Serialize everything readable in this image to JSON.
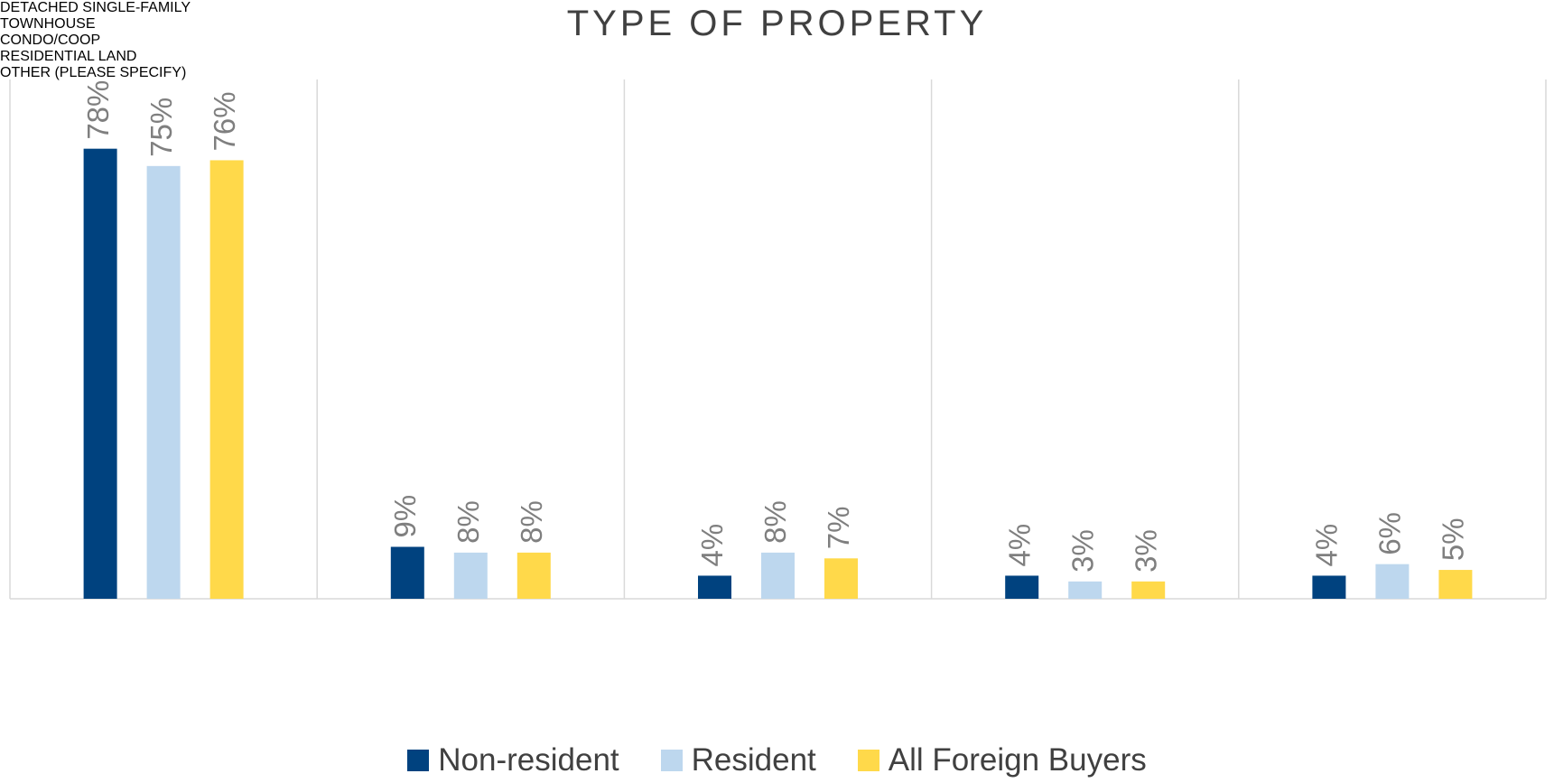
{
  "chart_data": {
    "type": "bar",
    "title": "TYPE OF PROPERTY",
    "categories": [
      "DETACHED SINGLE-FAMILY",
      "TOWNHOUSE",
      "CONDO/COOP",
      "RESIDENTIAL LAND",
      "OTHER (PLEASE SPECIFY)"
    ],
    "series": [
      {
        "name": "Non-resident",
        "color": "#00427f",
        "values": [
          78,
          9,
          4,
          4,
          4
        ],
        "value_labels": [
          "78%",
          "9%",
          "4%",
          "4%",
          "4%"
        ]
      },
      {
        "name": "Resident",
        "color": "#bdd7ee",
        "values": [
          75,
          8,
          8,
          3,
          6
        ],
        "value_labels": [
          "75%",
          "8%",
          "8%",
          "3%",
          "6%"
        ]
      },
      {
        "name": "All Foreign Buyers",
        "color": "#ffd94a",
        "values": [
          76,
          8,
          7,
          3,
          5
        ],
        "value_labels": [
          "76%",
          "8%",
          "7%",
          "3%",
          "5%"
        ]
      }
    ],
    "ylim": [
      0,
      90
    ],
    "legend": "bottom"
  }
}
